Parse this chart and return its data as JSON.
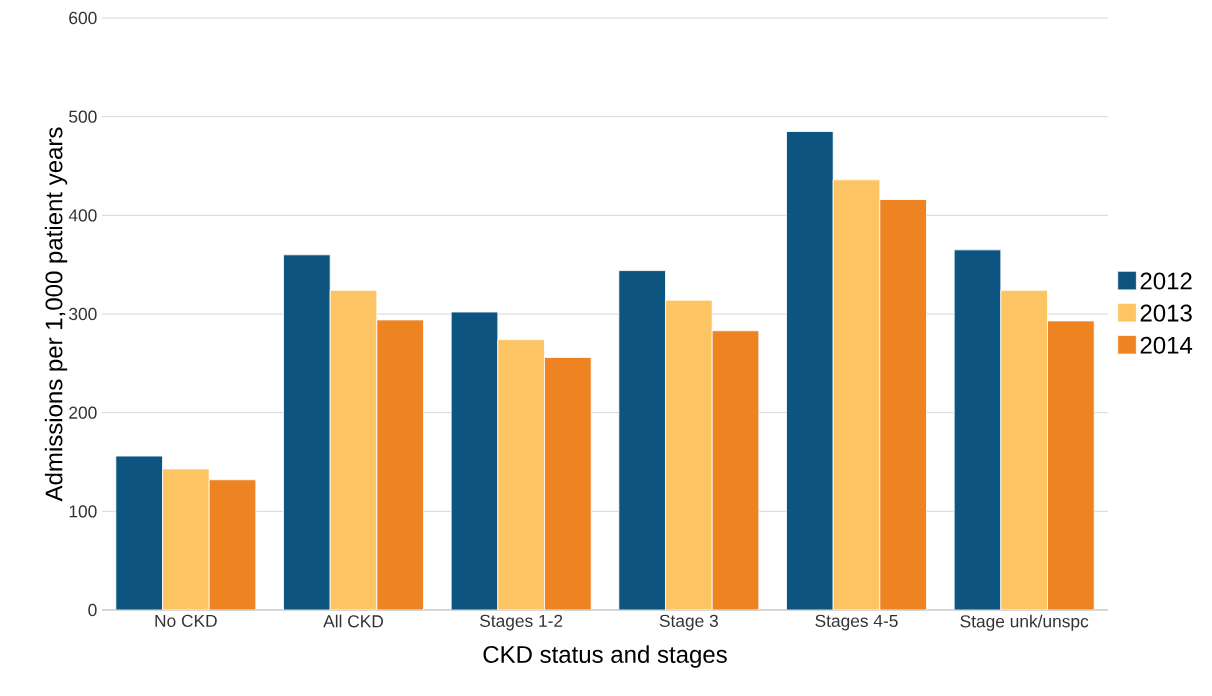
{
  "chart_data": {
    "type": "bar",
    "xlabel": "CKD status and stages",
    "ylabel": "Admissions per 1,000 patient years",
    "categories": [
      "No CKD",
      "All CKD",
      "Stages 1-2",
      "Stage 3",
      "Stages 4-5",
      "Stage unk/unspc"
    ],
    "series": [
      {
        "name": "2012",
        "color": "#0e5480",
        "values": [
          156,
          360,
          302,
          344,
          485,
          365
        ]
      },
      {
        "name": "2013",
        "color": "#fdc463",
        "values": [
          143,
          324,
          274,
          314,
          436,
          324
        ]
      },
      {
        "name": "2014",
        "color": "#ee8322",
        "values": [
          132,
          294,
          256,
          283,
          416,
          293
        ]
      }
    ],
    "ylim": [
      0,
      600
    ],
    "yticks": [
      0,
      100,
      200,
      300,
      400,
      500,
      600
    ],
    "grid": "y",
    "legend": "right"
  }
}
